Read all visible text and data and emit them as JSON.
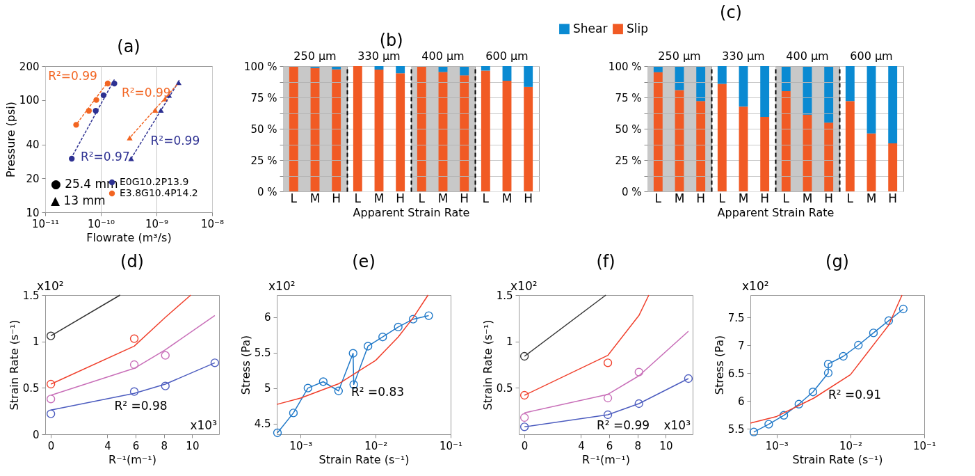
{
  "chart_data": [
    {
      "type": "scatter",
      "title": "(a)",
      "xlabel": "Flowrate (m³/s)",
      "ylabel": "Pressure (psi)",
      "log": "xy",
      "grid": "x",
      "legend": "bottom right",
      "xlim": [
        1e-11,
        1e-08
      ],
      "ylim": [
        10,
        200
      ],
      "xticks": [
        {
          "value": 1e-11,
          "label": "10⁻¹¹"
        },
        {
          "value": 1e-10,
          "label": "10⁻¹⁰"
        },
        {
          "value": 1e-09,
          "label": "10⁻⁹"
        },
        {
          "value": 1e-08,
          "label": "10⁻⁸"
        }
      ],
      "yticks": [
        10,
        20,
        40,
        100,
        200
      ],
      "annotations": [
        "● 25.4 mm",
        "▲ 13 mm"
      ],
      "series": [
        {
          "name": "E0G10.2P13.9",
          "color": "#2e3192",
          "marker": "circle",
          "x": [
            3e-11,
            8.1e-11,
            1.12e-10,
            1.75e-10
          ],
          "values": [
            30,
            80,
            110,
            140
          ]
        },
        {
          "name": "E3.8G10.4P14.2",
          "color": "#f26522",
          "marker": "circle",
          "x": [
            3.6e-11,
            6.1e-11,
            8.3e-11,
            1.33e-10
          ],
          "values": [
            60,
            80,
            100,
            140
          ]
        },
        {
          "color": "#2e3192",
          "marker": "triangle",
          "x": [
            3.5e-10,
            1.2e-09,
            1.68e-09,
            2.5e-09
          ],
          "values": [
            30,
            81,
            110,
            143
          ]
        },
        {
          "color": "#f26522",
          "marker": "triangle",
          "x": [
            3.3e-10,
            9.5e-10,
            1.43e-09
          ],
          "values": [
            46,
            81,
            102
          ]
        },
        {
          "name": "R²=0.99",
          "type": "line",
          "line_style": "dashed",
          "color": "#f26522",
          "x": [
            3.4e-11,
            1.45e-10
          ],
          "values": [
            58,
            152
          ]
        },
        {
          "name": "R²=0.97",
          "type": "line",
          "line_style": "dashed",
          "color": "#2e3192",
          "x": [
            2.9e-11,
            1.75e-10
          ],
          "values": [
            30,
            152
          ]
        },
        {
          "name": "R²=0.99",
          "type": "line",
          "line_style": "dashed",
          "color": "#2e3192",
          "x": [
            3.5e-10,
            2.6e-09
          ],
          "values": [
            30,
            150
          ]
        },
        {
          "name": "R²=0.99",
          "type": "line",
          "line_style": "dashed",
          "color": "#f26522",
          "x": [
            3.3e-10,
            2.35e-09
          ],
          "values": [
            46,
            137
          ]
        }
      ]
    },
    {
      "type": "bar",
      "title": "250 µm",
      "categories": [
        "L",
        "M",
        "H"
      ],
      "stacked": true,
      "grid": "y",
      "ylim": [
        0,
        100
      ],
      "yticks": [
        {
          "value": 0,
          "label": "0 %"
        },
        {
          "value": 12.5,
          "label": null
        },
        {
          "value": 25,
          "label": "25 %"
        },
        {
          "value": 37.5,
          "label": null
        },
        {
          "value": 50,
          "label": "50 %"
        },
        {
          "value": 62.5,
          "label": null
        },
        {
          "value": 75,
          "label": "75 %"
        },
        {
          "value": 87.5,
          "label": null
        },
        {
          "value": 100,
          "label": "100 %"
        }
      ],
      "bands": [
        {
          "axis": "x",
          "from": "L",
          "to": "H",
          "color": "#c8c8c8"
        }
      ],
      "series": [
        {
          "color": "#f15a24",
          "values": [
            100,
            98.5,
            97.4
          ]
        },
        {
          "color": "#0a8ad2",
          "values": [
            0,
            1.5,
            2.6
          ]
        }
      ]
    },
    {
      "type": "bar",
      "title": "330 µm",
      "xlabel": "Apparent Strain Rate",
      "annotations": [
        "(b)"
      ],
      "tick_labels": "x",
      "categories": [
        "L",
        "M",
        "H"
      ],
      "stacked": true,
      "grid": "y",
      "ylim": [
        0,
        100
      ],
      "yticks": [
        0,
        12.5,
        25,
        37.5,
        50,
        62.5,
        75,
        87.5,
        100
      ],
      "series": [
        {
          "color": "#f15a24",
          "values": [
            100,
            97.2,
            94.3
          ]
        },
        {
          "color": "#0a8ad2",
          "values": [
            0,
            2.8,
            5.7
          ]
        }
      ]
    },
    {
      "type": "bar",
      "title": "400 µm",
      "tick_labels": "x",
      "categories": [
        "L",
        "M",
        "H"
      ],
      "stacked": true,
      "grid": "y",
      "ylim": [
        0,
        100
      ],
      "yticks": [
        0,
        12.5,
        25,
        37.5,
        50,
        62.5,
        75,
        87.5,
        100
      ],
      "bands": [
        {
          "axis": "x",
          "from": "L",
          "to": "H",
          "color": "#c8c8c8"
        }
      ],
      "series": [
        {
          "color": "#f15a24",
          "values": [
            100,
            95.3,
            92.6
          ]
        },
        {
          "color": "#0a8ad2",
          "values": [
            0,
            4.7,
            7.4
          ]
        }
      ]
    },
    {
      "type": "bar",
      "title": "600 µm",
      "tick_labels": "x",
      "categories": [
        "L",
        "M",
        "H"
      ],
      "stacked": true,
      "grid": "y",
      "ylim": [
        0,
        100
      ],
      "yticks": [
        0,
        12.5,
        25,
        37.5,
        50,
        62.5,
        75,
        87.5,
        100
      ],
      "series": [
        {
          "color": "#f15a24",
          "values": [
            96.4,
            88.3,
            83.4
          ]
        },
        {
          "color": "#0a8ad2",
          "values": [
            3.6,
            11.7,
            16.6
          ]
        }
      ]
    },
    {
      "type": "bar",
      "title": "250 µm",
      "legend": "top left",
      "categories": [
        "L",
        "M",
        "H"
      ],
      "stacked": true,
      "grid": "y",
      "ylim": [
        0,
        100
      ],
      "yticks": [
        {
          "value": 0,
          "label": "0 %"
        },
        {
          "value": 12.5,
          "label": null
        },
        {
          "value": 25,
          "label": "25 %"
        },
        {
          "value": 37.5,
          "label": null
        },
        {
          "value": 50,
          "label": "50 %"
        },
        {
          "value": 62.5,
          "label": null
        },
        {
          "value": 75,
          "label": "75 %"
        },
        {
          "value": 87.5,
          "label": null
        },
        {
          "value": 100,
          "label": "100 %"
        }
      ],
      "bands": [
        {
          "axis": "x",
          "from": "L",
          "to": "H",
          "color": "#c8c8c8"
        }
      ],
      "series": [
        {
          "name": "Slip",
          "color": "#f15a24",
          "values": [
            95.1,
            80.9,
            72.1
          ]
        },
        {
          "name": "Shear",
          "color": "#0a8ad2",
          "values": [
            4.9,
            19.1,
            27.9
          ]
        }
      ]
    },
    {
      "type": "bar",
      "title": "330 µm",
      "xlabel": "Apparent Strain Rate",
      "annotations": [
        "(c)"
      ],
      "tick_labels": "x",
      "categories": [
        "L",
        "M",
        "H"
      ],
      "stacked": true,
      "grid": "y",
      "ylim": [
        0,
        100
      ],
      "yticks": [
        0,
        12.5,
        25,
        37.5,
        50,
        62.5,
        75,
        87.5,
        100
      ],
      "series": [
        {
          "color": "#f15a24",
          "values": [
            85.8,
            67.7,
            59.4
          ]
        },
        {
          "color": "#0a8ad2",
          "values": [
            14.2,
            32.3,
            40.6
          ]
        }
      ]
    },
    {
      "type": "bar",
      "title": "400 µm",
      "tick_labels": "x",
      "categories": [
        "L",
        "M",
        "H"
      ],
      "stacked": true,
      "grid": "y",
      "ylim": [
        0,
        100
      ],
      "yticks": [
        0,
        12.5,
        25,
        37.5,
        50,
        62.5,
        75,
        87.5,
        100
      ],
      "bands": [
        {
          "axis": "x",
          "from": "L",
          "to": "H",
          "color": "#c8c8c8"
        }
      ],
      "series": [
        {
          "color": "#f15a24",
          "values": [
            80,
            61.3,
            54.9
          ]
        },
        {
          "color": "#0a8ad2",
          "values": [
            20,
            38.7,
            45.1
          ]
        }
      ]
    },
    {
      "type": "bar",
      "title": "600 µm",
      "tick_labels": "x",
      "categories": [
        "L",
        "M",
        "H"
      ],
      "stacked": true,
      "grid": "y",
      "ylim": [
        0,
        100
      ],
      "yticks": [
        0,
        12.5,
        25,
        37.5,
        50,
        62.5,
        75,
        87.5,
        100
      ],
      "series": [
        {
          "color": "#f15a24",
          "values": [
            72.1,
            46.2,
            38.3
          ]
        },
        {
          "color": "#0a8ad2",
          "values": [
            27.9,
            53.8,
            61.7
          ]
        }
      ]
    },
    {
      "type": "scatter",
      "title": "(d)",
      "xlabel": "R⁻¹(m⁻¹)",
      "ylabel": "Strain Rate (s⁻¹)",
      "marker": "circle",
      "xlim": [
        -0.4,
        11.9
      ],
      "ylim": [
        0,
        1.5
      ],
      "xticks": [
        0,
        4,
        6,
        8,
        10
      ],
      "yticks": [
        0,
        0.5,
        1,
        1.5
      ],
      "annotations": [
        "x10²",
        "R² =0.98",
        "x10³"
      ],
      "series": [
        {
          "color": "#333333",
          "x": [
            0
          ],
          "values": [
            1.06
          ]
        },
        {
          "type": "line",
          "marker": "none",
          "color": "#333333",
          "x": [
            0,
            4.9
          ],
          "values": [
            1.06,
            1.5
          ]
        },
        {
          "color": "#f0402c",
          "x": [
            0,
            5.9
          ],
          "values": [
            0.54,
            1.03
          ]
        },
        {
          "type": "line",
          "marker": "none",
          "color": "#f0402c",
          "x": [
            0,
            5.9,
            8.1,
            9.9
          ],
          "values": [
            0.54,
            0.95,
            1.26,
            1.5
          ]
        },
        {
          "color": "#c86eb8",
          "x": [
            0,
            5.9,
            8.1
          ],
          "values": [
            0.38,
            0.75,
            0.85
          ]
        },
        {
          "type": "line",
          "marker": "none",
          "color": "#c86eb8",
          "x": [
            0,
            5.9,
            8.1,
            11.6
          ],
          "values": [
            0.42,
            0.71,
            0.91,
            1.28
          ]
        },
        {
          "color": "#4c5cbf",
          "x": [
            0,
            5.9,
            8.1,
            11.6
          ],
          "values": [
            0.22,
            0.46,
            0.52,
            0.77
          ]
        },
        {
          "type": "line",
          "marker": "none",
          "color": "#4c5cbf",
          "x": [
            0,
            5.9,
            8.1,
            11.6
          ],
          "values": [
            0.26,
            0.44,
            0.54,
            0.77
          ]
        }
      ]
    },
    {
      "type": "line",
      "title": "(e)",
      "xlabel": "Strain Rate (s⁻¹)",
      "ylabel": "Stress (Pa)",
      "log": "x",
      "marker": "circle",
      "xlim": [
        0.00048,
        0.1
      ],
      "ylim": [
        4.35,
        6.31
      ],
      "xticks": [
        {
          "value": 0.001,
          "label": "10⁻³"
        },
        {
          "value": 0.01,
          "label": "10⁻²"
        },
        {
          "value": 0.1,
          "label": "10⁻¹"
        }
      ],
      "yticks": [
        4.5,
        5,
        5.5,
        6
      ],
      "annotations": [
        "x10²",
        "R² =0.83"
      ],
      "series": [
        {
          "color": "#1f78c8",
          "x": [
            0.00049,
            0.0008,
            0.00125,
            0.002,
            0.0032,
            0.005,
            0.0051,
            0.0079,
            0.0124,
            0.02,
            0.0316,
            0.051
          ],
          "values": [
            4.37,
            4.65,
            5.0,
            5.09,
            4.96,
            5.49,
            5.05,
            5.59,
            5.72,
            5.86,
            5.97,
            6.02
          ]
        },
        {
          "marker": "none",
          "color": "#f03c28",
          "x": [
            0.00048,
            0.001,
            0.0032,
            0.01,
            0.02,
            0.0316,
            0.05
          ],
          "values": [
            4.77,
            4.86,
            5.06,
            5.39,
            5.72,
            5.99,
            6.31
          ]
        }
      ]
    },
    {
      "type": "scatter",
      "title": "(f)",
      "xlabel": "R⁻¹(m⁻¹)",
      "ylabel": "Strain Rate (s⁻¹)",
      "marker": "circle",
      "xlim": [
        -0.4,
        11.9
      ],
      "ylim": [
        0,
        1.5
      ],
      "xticks": [
        0,
        4,
        6,
        8,
        10
      ],
      "yticks": [
        0.5,
        1,
        1.5
      ],
      "annotations": [
        "x10²",
        "R² =0.99",
        "x10³"
      ],
      "series": [
        {
          "color": "#333333",
          "x": [
            0
          ],
          "values": [
            0.84
          ]
        },
        {
          "type": "line",
          "marker": "none",
          "color": "#333333",
          "x": [
            0,
            5.76
          ],
          "values": [
            0.84,
            1.5
          ]
        },
        {
          "color": "#f0402c",
          "x": [
            0,
            5.9
          ],
          "values": [
            0.42,
            0.77
          ]
        },
        {
          "type": "line",
          "marker": "none",
          "color": "#f0402c",
          "x": [
            0,
            5.9,
            8.1,
            8.8
          ],
          "values": [
            0.42,
            0.85,
            1.28,
            1.5
          ]
        },
        {
          "color": "#c86eb8",
          "x": [
            0,
            5.9,
            8.1
          ],
          "values": [
            0.18,
            0.39,
            0.67
          ]
        },
        {
          "type": "line",
          "marker": "none",
          "color": "#c86eb8",
          "x": [
            0,
            5.9,
            8.1,
            11.6
          ],
          "values": [
            0.23,
            0.43,
            0.63,
            1.11
          ]
        },
        {
          "color": "#4c5cbf",
          "x": [
            0,
            5.9,
            8.1,
            11.6
          ],
          "values": [
            0.08,
            0.21,
            0.33,
            0.6
          ]
        },
        {
          "type": "line",
          "marker": "none",
          "color": "#4c5cbf",
          "x": [
            0,
            5.9,
            8.1,
            11.6
          ],
          "values": [
            0.08,
            0.21,
            0.33,
            0.6
          ]
        }
      ]
    },
    {
      "type": "line",
      "title": "(g)",
      "xlabel": "Strain Rate (s⁻¹)",
      "ylabel": "Stress (Pa)",
      "log": "x",
      "marker": "circle",
      "xlim": [
        0.00044,
        0.1
      ],
      "ylim": [
        5.4,
        7.9
      ],
      "xticks": [
        {
          "value": 0.001,
          "label": "10⁻³"
        },
        {
          "value": 0.01,
          "label": "10⁻²"
        },
        {
          "value": 0.1,
          "label": "10⁻¹"
        }
      ],
      "yticks": [
        5.5,
        6,
        6.5,
        7,
        7.5
      ],
      "annotations": [
        "x10²",
        "R² =0.91"
      ],
      "series": [
        {
          "color": "#1f78c8",
          "x": [
            0.00049,
            0.00078,
            0.00125,
            0.002,
            0.0031,
            0.005,
            0.005,
            0.008,
            0.0128,
            0.0205,
            0.033,
            0.052
          ],
          "values": [
            5.44,
            5.58,
            5.74,
            5.94,
            6.16,
            6.5,
            6.66,
            6.8,
            7.0,
            7.22,
            7.44,
            7.65
          ]
        },
        {
          "marker": "none",
          "color": "#f03c28",
          "x": [
            0.00044,
            0.001,
            0.0032,
            0.01,
            0.033,
            0.05
          ],
          "values": [
            5.6,
            5.72,
            6.05,
            6.47,
            7.36,
            7.9
          ]
        }
      ]
    }
  ]
}
